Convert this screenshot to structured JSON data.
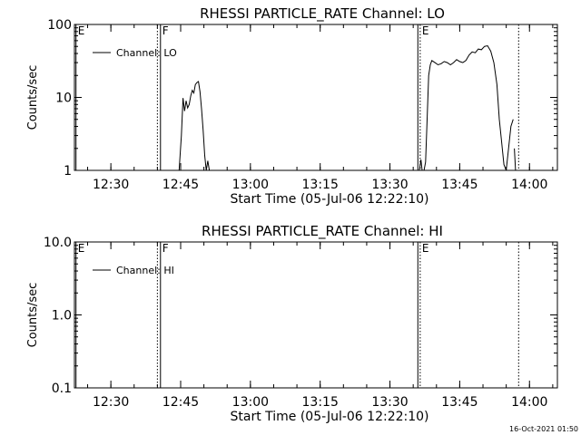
{
  "timestamp": "16-Oct-2021 01:50",
  "chart_data": [
    {
      "type": "line",
      "title": "RHESSI PARTICLE_RATE Channel: LO",
      "xlabel": "Start Time (05-Jul-06 12:22:10)",
      "ylabel": "Counts/sec",
      "y_scale": "log",
      "ylim": [
        1,
        100
      ],
      "xlim": [
        "12:22:10",
        "14:06:00"
      ],
      "x_ticks": [
        "12:30",
        "12:45",
        "13:00",
        "13:15",
        "13:30",
        "13:45",
        "14:00"
      ],
      "y_ticks": [
        "1",
        "10",
        "100"
      ],
      "legend_position": "top-left",
      "series": [
        {
          "name": "Channel: LO",
          "segments": [
            {
              "x": [
                "12:44:40",
                "12:45:10",
                "12:45:30",
                "12:45:50",
                "12:46:10",
                "12:46:30",
                "12:46:50",
                "12:47:10",
                "12:47:30",
                "12:47:50",
                "12:48:10",
                "12:48:30",
                "12:48:50",
                "12:49:10",
                "12:49:30",
                "12:49:50",
                "12:50:10",
                "12:50:30",
                "12:50:50",
                "12:51:10",
                "12:51:20"
              ],
              "y": [
                1.0,
                3.0,
                9.8,
                6.5,
                9.0,
                7.2,
                8.0,
                10.5,
                12.5,
                11.5,
                15.0,
                16.0,
                16.5,
                12.0,
                7.0,
                3.5,
                1.6,
                1.0,
                1.35,
                1.0,
                0.9
              ]
            },
            {
              "x": [
                "13:36:20",
                "13:36:40",
                "13:37:00",
                "13:37:20",
                "13:37:40",
                "13:38:00",
                "13:38:20",
                "13:38:40",
                "13:39:00",
                "13:39:40",
                "13:40:20",
                "13:41:00",
                "13:41:40",
                "13:42:20",
                "13:43:00",
                "13:43:40",
                "13:44:20",
                "13:45:00",
                "13:45:40",
                "13:46:20",
                "13:47:00",
                "13:47:40",
                "13:48:20",
                "13:49:00",
                "13:49:40",
                "13:50:20",
                "13:51:00",
                "13:51:40",
                "13:52:20",
                "13:53:00",
                "13:53:30",
                "13:54:00",
                "13:54:30",
                "13:55:00",
                "13:55:30",
                "13:56:00",
                "13:56:30"
              ],
              "y": [
                1.0,
                1.4,
                0.9,
                1.0,
                1.3,
                5.0,
                20.0,
                28.0,
                32.0,
                30.0,
                28.0,
                29.0,
                31.0,
                30.0,
                28.0,
                30.0,
                33.0,
                31.0,
                30.0,
                32.0,
                38.0,
                42.0,
                41.0,
                46.0,
                45.0,
                50.0,
                51.0,
                43.0,
                30.0,
                15.0,
                5.0,
                2.5,
                1.2,
                1.0,
                2.0,
                4.0,
                5.0
              ]
            },
            {
              "x": [
                "13:56:45",
                "13:57:00"
              ],
              "y": [
                2.0,
                1.0
              ]
            }
          ]
        }
      ],
      "vlines": [
        {
          "x": "12:22:30",
          "label": "E",
          "style": "solid"
        },
        {
          "x": "12:40:00",
          "label": "",
          "style": "dotted"
        },
        {
          "x": "12:40:40",
          "label": "F",
          "style": "solid"
        },
        {
          "x": "13:36:00",
          "label": "",
          "style": "solid"
        },
        {
          "x": "13:36:30",
          "label": "E",
          "style": "dotted"
        },
        {
          "x": "13:57:40",
          "label": "",
          "style": "dotted"
        }
      ]
    },
    {
      "type": "line",
      "title": "RHESSI PARTICLE_RATE Channel: HI",
      "xlabel": "Start Time (05-Jul-06 12:22:10)",
      "ylabel": "Counts/sec",
      "y_scale": "log",
      "ylim": [
        0.1,
        10
      ],
      "xlim": [
        "12:22:10",
        "14:06:00"
      ],
      "x_ticks": [
        "12:30",
        "12:45",
        "13:00",
        "13:15",
        "13:30",
        "13:45",
        "14:00"
      ],
      "y_ticks": [
        "0.1",
        "1.0",
        "10.0"
      ],
      "legend_position": "top-left",
      "series": [
        {
          "name": "Channel: HI",
          "segments": []
        }
      ],
      "vlines": [
        {
          "x": "12:22:30",
          "label": "E",
          "style": "solid"
        },
        {
          "x": "12:40:00",
          "label": "",
          "style": "dotted"
        },
        {
          "x": "12:40:40",
          "label": "F",
          "style": "solid"
        },
        {
          "x": "13:36:00",
          "label": "",
          "style": "solid"
        },
        {
          "x": "13:36:30",
          "label": "E",
          "style": "dotted"
        },
        {
          "x": "13:57:40",
          "label": "",
          "style": "dotted"
        }
      ]
    }
  ]
}
